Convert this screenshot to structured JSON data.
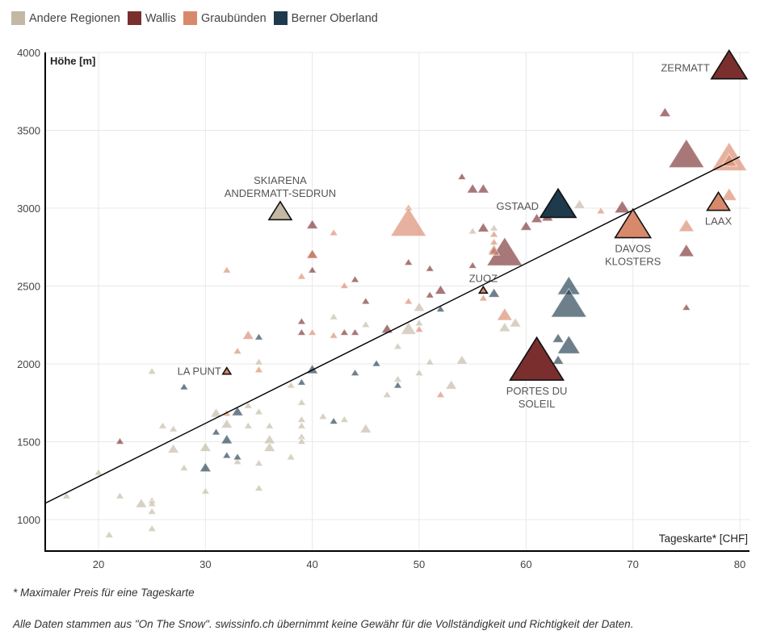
{
  "legend": [
    {
      "name": "Andere Regionen",
      "color": "#c2b8a3"
    },
    {
      "name": "Wallis",
      "color": "#7a2e2e"
    },
    {
      "name": "Graubünden",
      "color": "#d9896b"
    },
    {
      "name": "Berner Oberland",
      "color": "#1e3a4c"
    }
  ],
  "footnotes": {
    "note1": "* Maximaler Preis für eine Tageskarte",
    "note2": "Alle Daten stammen aus \"On The Snow\". swissinfo.ch übernimmt keine Gewähr für die Vollständigkeit und Richtigkeit der Daten."
  },
  "chart_data": {
    "type": "scatter",
    "title": "",
    "xlabel": "Tageskarte* [CHF]",
    "ylabel": "Höhe [m]",
    "xlim": [
      15,
      81
    ],
    "ylim": [
      800,
      4000
    ],
    "xticks": [
      20,
      30,
      40,
      50,
      60,
      70,
      80
    ],
    "yticks": [
      1000,
      1500,
      2000,
      2500,
      3000,
      3500,
      4000
    ],
    "grid": true,
    "legend_position": "top-left",
    "marker": "triangle",
    "trendline": {
      "x": [
        15,
        80
      ],
      "y": [
        1105,
        3330
      ]
    },
    "series": [
      {
        "name": "Andere Regionen",
        "color": "#c2b8a3",
        "points": [
          {
            "x": 17,
            "y": 1150,
            "s": 1
          },
          {
            "x": 20,
            "y": 1300,
            "s": 1
          },
          {
            "x": 21,
            "y": 900,
            "s": 1
          },
          {
            "x": 22,
            "y": 1150,
            "s": 1
          },
          {
            "x": 24,
            "y": 1100,
            "s": 2
          },
          {
            "x": 25,
            "y": 1120,
            "s": 1
          },
          {
            "x": 25,
            "y": 1100,
            "s": 1
          },
          {
            "x": 25,
            "y": 1050,
            "s": 1
          },
          {
            "x": 25,
            "y": 940,
            "s": 1
          },
          {
            "x": 25,
            "y": 1950,
            "s": 1
          },
          {
            "x": 26,
            "y": 1600,
            "s": 1
          },
          {
            "x": 27,
            "y": 1580,
            "s": 1
          },
          {
            "x": 27,
            "y": 1450,
            "s": 2
          },
          {
            "x": 28,
            "y": 1330,
            "s": 1
          },
          {
            "x": 30,
            "y": 1460,
            "s": 2
          },
          {
            "x": 30,
            "y": 1180,
            "s": 1
          },
          {
            "x": 31,
            "y": 1680,
            "s": 2
          },
          {
            "x": 32,
            "y": 1610,
            "s": 2
          },
          {
            "x": 33,
            "y": 1370,
            "s": 1
          },
          {
            "x": 34,
            "y": 1730,
            "s": 1
          },
          {
            "x": 34,
            "y": 1600,
            "s": 1
          },
          {
            "x": 35,
            "y": 2010,
            "s": 1
          },
          {
            "x": 35,
            "y": 1690,
            "s": 1
          },
          {
            "x": 35,
            "y": 1360,
            "s": 1
          },
          {
            "x": 35,
            "y": 1200,
            "s": 1
          },
          {
            "x": 36,
            "y": 1600,
            "s": 1
          },
          {
            "x": 36,
            "y": 1510,
            "s": 2
          },
          {
            "x": 36,
            "y": 1460,
            "s": 2
          },
          {
            "x": 38,
            "y": 1860,
            "s": 1
          },
          {
            "x": 38,
            "y": 1400,
            "s": 1
          },
          {
            "x": 39,
            "y": 1750,
            "s": 1
          },
          {
            "x": 39,
            "y": 1640,
            "s": 1
          },
          {
            "x": 39,
            "y": 1600,
            "s": 1
          },
          {
            "x": 39,
            "y": 1530,
            "s": 1
          },
          {
            "x": 39,
            "y": 1500,
            "s": 1
          },
          {
            "x": 41,
            "y": 1660,
            "s": 1
          },
          {
            "x": 42,
            "y": 2300,
            "s": 1
          },
          {
            "x": 43,
            "y": 1640,
            "s": 1
          },
          {
            "x": 45,
            "y": 2250,
            "s": 1
          },
          {
            "x": 45,
            "y": 1580,
            "s": 2
          },
          {
            "x": 47,
            "y": 1800,
            "s": 1
          },
          {
            "x": 48,
            "y": 2110,
            "s": 1
          },
          {
            "x": 48,
            "y": 1900,
            "s": 1
          },
          {
            "x": 49,
            "y": 2220,
            "s": 3
          },
          {
            "x": 50,
            "y": 2360,
            "s": 2
          },
          {
            "x": 50,
            "y": 2260,
            "s": 1
          },
          {
            "x": 50,
            "y": 1940,
            "s": 1
          },
          {
            "x": 51,
            "y": 2010,
            "s": 1
          },
          {
            "x": 53,
            "y": 1860,
            "s": 2
          },
          {
            "x": 54,
            "y": 2020,
            "s": 2
          },
          {
            "x": 55,
            "y": 2850,
            "s": 1
          },
          {
            "x": 57,
            "y": 2870,
            "s": 1
          },
          {
            "x": 58,
            "y": 2230,
            "s": 2
          },
          {
            "x": 59,
            "y": 2260,
            "s": 2
          },
          {
            "x": 65,
            "y": 3020,
            "s": 2
          },
          {
            "x": 37,
            "y": 2970,
            "s": 4,
            "label": "SKIARENA\nANDERMATT-SEDRUN",
            "labelPos": "top"
          }
        ]
      },
      {
        "name": "Wallis",
        "color": "#7a2e2e",
        "points": [
          {
            "x": 22,
            "y": 1500,
            "s": 1
          },
          {
            "x": 39,
            "y": 2270,
            "s": 1
          },
          {
            "x": 39,
            "y": 2200,
            "s": 1
          },
          {
            "x": 40,
            "y": 2890,
            "s": 2
          },
          {
            "x": 40,
            "y": 2700,
            "s": 2
          },
          {
            "x": 40,
            "y": 2600,
            "s": 1
          },
          {
            "x": 43,
            "y": 2200,
            "s": 1
          },
          {
            "x": 44,
            "y": 2540,
            "s": 1
          },
          {
            "x": 44,
            "y": 2200,
            "s": 1
          },
          {
            "x": 45,
            "y": 2400,
            "s": 1
          },
          {
            "x": 47,
            "y": 2220,
            "s": 2
          },
          {
            "x": 49,
            "y": 2650,
            "s": 1
          },
          {
            "x": 51,
            "y": 2610,
            "s": 1
          },
          {
            "x": 51,
            "y": 2440,
            "s": 1
          },
          {
            "x": 52,
            "y": 2470,
            "s": 2
          },
          {
            "x": 54,
            "y": 3200,
            "s": 1
          },
          {
            "x": 55,
            "y": 3120,
            "s": 2
          },
          {
            "x": 55,
            "y": 2630,
            "s": 1
          },
          {
            "x": 56,
            "y": 3120,
            "s": 2
          },
          {
            "x": 56,
            "y": 2870,
            "s": 2
          },
          {
            "x": 57,
            "y": 2730,
            "s": 2
          },
          {
            "x": 58,
            "y": 2700,
            "s": 5
          },
          {
            "x": 60,
            "y": 2880,
            "s": 2
          },
          {
            "x": 61,
            "y": 2930,
            "s": 2
          },
          {
            "x": 62,
            "y": 2940,
            "s": 2
          },
          {
            "x": 69,
            "y": 3000,
            "s": 3
          },
          {
            "x": 73,
            "y": 3610,
            "s": 2
          },
          {
            "x": 75,
            "y": 3330,
            "s": 5
          },
          {
            "x": 75,
            "y": 2720,
            "s": 3
          },
          {
            "x": 75,
            "y": 2360,
            "s": 1
          },
          {
            "x": 79,
            "y": 3900,
            "s": 5,
            "label": "ZERMATT",
            "labelPos": "left"
          },
          {
            "x": 61,
            "y": 2000,
            "s": 7,
            "label": "PORTES DU\nSOLEIL",
            "labelPos": "bottom"
          }
        ]
      },
      {
        "name": "Graubünden",
        "color": "#d9896b",
        "points": [
          {
            "x": 32,
            "y": 2600,
            "s": 1
          },
          {
            "x": 32,
            "y": 1680,
            "s": 1
          },
          {
            "x": 33,
            "y": 2080,
            "s": 1
          },
          {
            "x": 34,
            "y": 2180,
            "s": 2
          },
          {
            "x": 35,
            "y": 1960,
            "s": 1
          },
          {
            "x": 39,
            "y": 2560,
            "s": 1
          },
          {
            "x": 40,
            "y": 2700,
            "s": 2
          },
          {
            "x": 40,
            "y": 2200,
            "s": 1
          },
          {
            "x": 42,
            "y": 2840,
            "s": 1
          },
          {
            "x": 42,
            "y": 2180,
            "s": 1
          },
          {
            "x": 43,
            "y": 2500,
            "s": 1
          },
          {
            "x": 49,
            "y": 3000,
            "s": 1
          },
          {
            "x": 49,
            "y": 2890,
            "s": 5
          },
          {
            "x": 49,
            "y": 2400,
            "s": 1
          },
          {
            "x": 50,
            "y": 2220,
            "s": 1
          },
          {
            "x": 52,
            "y": 1800,
            "s": 1
          },
          {
            "x": 56,
            "y": 2420,
            "s": 1
          },
          {
            "x": 57,
            "y": 2830,
            "s": 1
          },
          {
            "x": 57,
            "y": 2780,
            "s": 1
          },
          {
            "x": 57,
            "y": 2720,
            "s": 2
          },
          {
            "x": 58,
            "y": 2310,
            "s": 3
          },
          {
            "x": 67,
            "y": 2980,
            "s": 1
          },
          {
            "x": 75,
            "y": 2880,
            "s": 3
          },
          {
            "x": 79,
            "y": 3310,
            "s": 5
          },
          {
            "x": 79,
            "y": 3300,
            "s": 3
          },
          {
            "x": 79,
            "y": 3080,
            "s": 3
          },
          {
            "x": 70,
            "y": 2880,
            "s": 5,
            "label": "DAVOS\nKLOSTERS",
            "labelPos": "bottom"
          },
          {
            "x": 78,
            "y": 3030,
            "s": 4,
            "label": "LAAX",
            "labelPos": "bottom"
          },
          {
            "x": 56,
            "y": 2470,
            "s": 1,
            "label": "ZUOZ",
            "labelPos": "top"
          },
          {
            "x": 32,
            "y": 1950,
            "s": 1,
            "label": "LA PUNT",
            "labelPos": "left"
          }
        ]
      },
      {
        "name": "Berner Oberland",
        "color": "#1e3a4c",
        "points": [
          {
            "x": 28,
            "y": 1850,
            "s": 1
          },
          {
            "x": 30,
            "y": 1330,
            "s": 2
          },
          {
            "x": 31,
            "y": 1560,
            "s": 1
          },
          {
            "x": 32,
            "y": 1510,
            "s": 2
          },
          {
            "x": 32,
            "y": 1410,
            "s": 1
          },
          {
            "x": 33,
            "y": 1690,
            "s": 2
          },
          {
            "x": 33,
            "y": 1400,
            "s": 1
          },
          {
            "x": 35,
            "y": 2170,
            "s": 1
          },
          {
            "x": 39,
            "y": 1880,
            "s": 1
          },
          {
            "x": 40,
            "y": 1960,
            "s": 2
          },
          {
            "x": 42,
            "y": 1630,
            "s": 1
          },
          {
            "x": 44,
            "y": 1940,
            "s": 1
          },
          {
            "x": 46,
            "y": 2000,
            "s": 1
          },
          {
            "x": 48,
            "y": 1860,
            "s": 1
          },
          {
            "x": 52,
            "y": 2350,
            "s": 1
          },
          {
            "x": 57,
            "y": 2450,
            "s": 2
          },
          {
            "x": 63,
            "y": 2980,
            "s": 2
          },
          {
            "x": 63,
            "y": 2160,
            "s": 2
          },
          {
            "x": 64,
            "y": 2490,
            "s": 4
          },
          {
            "x": 64,
            "y": 2370,
            "s": 5
          },
          {
            "x": 64,
            "y": 2110,
            "s": 4
          },
          {
            "x": 63,
            "y": 2020,
            "s": 2
          },
          {
            "x": 63,
            "y": 3010,
            "s": 5,
            "label": "GSTAAD",
            "labelPos": "left"
          }
        ]
      }
    ]
  }
}
